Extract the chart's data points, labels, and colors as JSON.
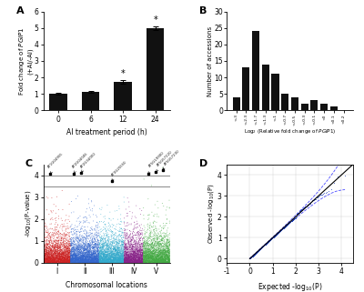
{
  "panel_A": {
    "x": [
      0,
      6,
      12,
      24
    ],
    "y": [
      1.0,
      1.12,
      1.72,
      5.0
    ],
    "yerr": [
      0.05,
      0.06,
      0.09,
      0.12
    ],
    "xlabel": "Al treatment period (h)",
    "ylabel": "Fold change of PGIP1\n(+Al/-Al)",
    "ylim": [
      0,
      6
    ],
    "yticks": [
      0,
      1,
      2,
      3,
      4,
      5,
      6
    ],
    "xticks": [
      0,
      6,
      12,
      24
    ],
    "asterisk": [
      false,
      false,
      true,
      true
    ],
    "bar_color": "#111111",
    "label": "A"
  },
  "panel_B": {
    "categories": [
      "<-3",
      "<-2.3",
      "<-1.7",
      "<-1.3",
      "<-1",
      "<-0.7",
      "<-0.5",
      "<-0.3",
      "<-0.1",
      "<0",
      "<0.1",
      "<0.2"
    ],
    "values": [
      4,
      13,
      24,
      14,
      11,
      5,
      4,
      2,
      3,
      2,
      1,
      0
    ],
    "xlabel": "Log2 (Relative fold change of PGIP1)",
    "ylabel": "Number of accessions",
    "ylim": [
      0,
      30
    ],
    "yticks": [
      0,
      5,
      10,
      15,
      20,
      25,
      30
    ],
    "bar_color": "#111111",
    "label": "B"
  },
  "panel_C": {
    "chr_colors": [
      "#cc2222",
      "#3366cc",
      "#33aacc",
      "#882288",
      "#44aa44"
    ],
    "n_snps_per_chr": [
      2800,
      3000,
      2600,
      2000,
      2800
    ],
    "label": "C",
    "xlabel": "Chromosomal locations",
    "ylabel": "-log$_{10}$(P-value)",
    "ylim": [
      0,
      4.5
    ],
    "yticks": [
      0,
      1,
      2,
      3,
      4
    ],
    "chr_labels": [
      "I",
      "II",
      "III",
      "IV",
      "V"
    ],
    "threshold1": 4.0,
    "threshold2": 3.5
  },
  "panel_D": {
    "label": "D",
    "xlabel": "Expected -log$_{10}$(P)",
    "ylabel": "Observed -log$_{10}$(P)",
    "xlim": [
      -1,
      4.5
    ],
    "ylim": [
      -0.2,
      4.5
    ],
    "yticks": [
      0,
      1,
      2,
      3,
      4
    ],
    "xticks": [
      -1,
      0,
      1,
      2,
      3,
      4
    ]
  }
}
